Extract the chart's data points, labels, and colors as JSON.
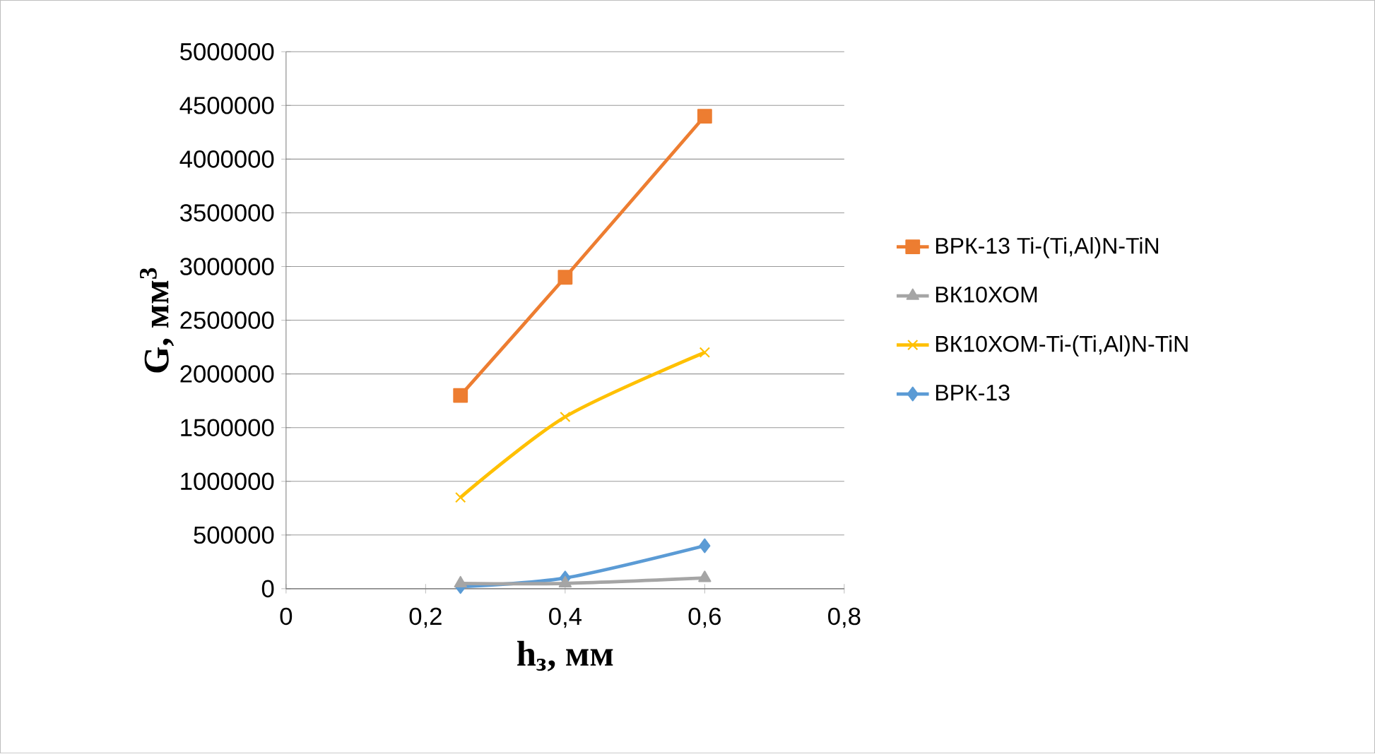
{
  "chart_data": {
    "type": "line",
    "xlabel": "h$_{з}$, мм",
    "ylabel": "G, мм$^{3}$",
    "x": [
      0.25,
      0.4,
      0.6
    ],
    "xlim": [
      0,
      0.8
    ],
    "xticks": [
      0,
      {
        "value": 0.2,
        "label": "0,2"
      },
      {
        "value": 0.4,
        "label": "0,4"
      },
      {
        "value": 0.6,
        "label": "0,6"
      },
      {
        "value": 0.8,
        "label": "0,8"
      }
    ],
    "ylim": [
      0,
      5000000
    ],
    "yticks": [
      0,
      500000,
      1000000,
      1500000,
      2000000,
      2500000,
      3000000,
      3500000,
      4000000,
      4500000,
      5000000
    ],
    "grid": "y",
    "legend": "right",
    "line_style": "solid",
    "series": [
      {
        "name": "ВРК-13 Ti-(Ti,Al)N-TiN",
        "color": "#ed7d31",
        "marker": "square",
        "values": [
          1800000,
          2900000,
          4400000
        ]
      },
      {
        "name": "ВК10ХОМ",
        "color": "#a5a5a5",
        "marker": "triangle",
        "values": [
          50000,
          50000,
          100000
        ]
      },
      {
        "name": "ВК10ХОМ-Ti-(Ti,Al)N-TiN",
        "color": "#ffc000",
        "marker": "cross",
        "values": [
          850000,
          1600000,
          2200000
        ]
      },
      {
        "name": "ВРК-13",
        "color": "#5b9bd5",
        "marker": "diamond",
        "values": [
          20000,
          100000,
          400000
        ]
      }
    ]
  }
}
